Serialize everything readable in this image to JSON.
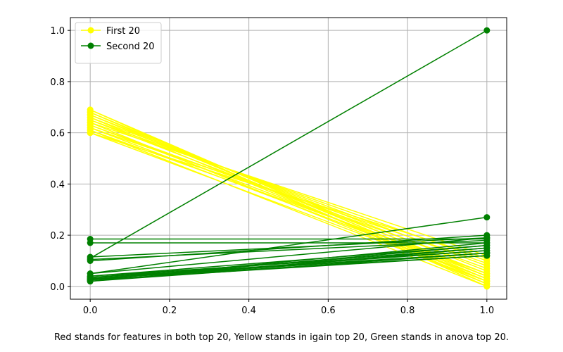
{
  "chart_data": {
    "type": "line",
    "xlim": [
      -0.05,
      1.05
    ],
    "ylim": [
      -0.05,
      1.05
    ],
    "xticks": [
      0.0,
      0.2,
      0.4,
      0.6,
      0.8,
      1.0
    ],
    "yticks": [
      0.0,
      0.2,
      0.4,
      0.6,
      0.8,
      1.0
    ],
    "xtick_labels": [
      "0.0",
      "0.2",
      "0.4",
      "0.6",
      "0.8",
      "1.0"
    ],
    "ytick_labels": [
      "0.0",
      "0.2",
      "0.4",
      "0.6",
      "0.8",
      "1.0"
    ],
    "grid": true,
    "legend_position": "top-left",
    "legend": [
      {
        "label": "First 20",
        "color": "#ffff00"
      },
      {
        "label": "Second 20",
        "color": "#008000"
      }
    ],
    "series": [
      {
        "name": "First 20",
        "color": "#ffff00",
        "lines": [
          [
            0.69,
            0.0
          ],
          [
            0.69,
            0.02
          ],
          [
            0.68,
            0.01
          ],
          [
            0.68,
            0.04
          ],
          [
            0.67,
            0.03
          ],
          [
            0.67,
            0.06
          ],
          [
            0.66,
            0.02
          ],
          [
            0.66,
            0.08
          ],
          [
            0.65,
            0.05
          ],
          [
            0.65,
            0.1
          ],
          [
            0.64,
            0.01
          ],
          [
            0.64,
            0.12
          ],
          [
            0.63,
            0.04
          ],
          [
            0.63,
            0.07
          ],
          [
            0.62,
            0.03
          ],
          [
            0.62,
            0.09
          ],
          [
            0.61,
            0.0
          ],
          [
            0.61,
            0.05
          ],
          [
            0.6,
            0.02
          ],
          [
            0.6,
            0.11
          ]
        ]
      },
      {
        "name": "Second 20",
        "color": "#008000",
        "lines": [
          [
            0.11,
            1.0
          ],
          [
            0.05,
            0.27
          ],
          [
            0.185,
            0.185
          ],
          [
            0.17,
            0.17
          ],
          [
            0.105,
            0.18
          ],
          [
            0.1,
            0.2
          ],
          [
            0.05,
            0.19
          ],
          [
            0.04,
            0.16
          ],
          [
            0.035,
            0.15
          ],
          [
            0.03,
            0.14
          ],
          [
            0.03,
            0.13
          ],
          [
            0.025,
            0.12
          ],
          [
            0.025,
            0.17
          ],
          [
            0.02,
            0.15
          ],
          [
            0.02,
            0.13
          ],
          [
            0.03,
            0.12
          ],
          [
            0.04,
            0.14
          ],
          [
            0.025,
            0.16
          ],
          [
            0.035,
            0.13
          ],
          [
            0.115,
            0.19
          ]
        ]
      }
    ]
  },
  "caption": "Red stands for features in both top 20, Yellow stands in igain top 20, Green stands in anova top 20."
}
